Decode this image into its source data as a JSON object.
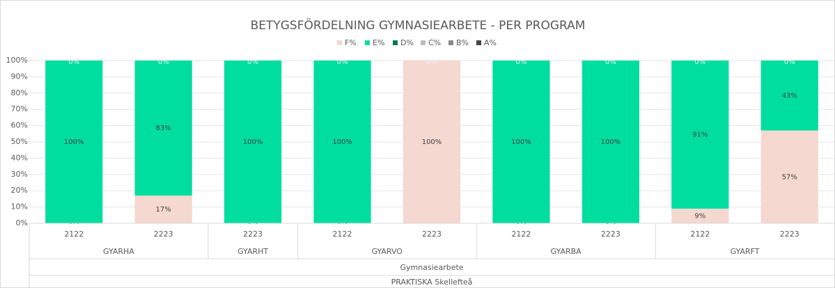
{
  "chart_data": {
    "type": "stacked-bar",
    "title": "BETYGSFÖRDELNING GYMNASIEARBETE - PER PROGRAM",
    "categories": [
      "2122",
      "2223",
      "2223",
      "2122",
      "2223",
      "2122",
      "2223",
      "2122",
      "2223"
    ],
    "groups": [
      {
        "label": "GYARHA",
        "span": 2
      },
      {
        "label": "GYARHT",
        "span": 1
      },
      {
        "label": "GYARVO",
        "span": 2
      },
      {
        "label": "GYARBA",
        "span": 2
      },
      {
        "label": "GYARFT",
        "span": 2
      }
    ],
    "group_level_2": "Gymnasiearbete",
    "group_level_3": "PRAKTISKA Skellefteå",
    "series": [
      {
        "name": "F%",
        "color": "#f5d8cf",
        "values": [
          0,
          17,
          0,
          0,
          100,
          0,
          0,
          9,
          57
        ],
        "value_labels": [
          "0%",
          "17%",
          "0%",
          "0%",
          "100%",
          "0%",
          "0%",
          "9%",
          "57%"
        ]
      },
      {
        "name": "E%",
        "color": "#00de9f",
        "values": [
          100,
          83,
          100,
          100,
          0,
          100,
          100,
          91,
          43
        ],
        "value_labels": [
          "100%",
          "83%",
          "100%",
          "100%",
          "0%",
          "100%",
          "100%",
          "91%",
          "43%"
        ]
      },
      {
        "name": "D%",
        "color": "#007a50",
        "values": [
          0,
          0,
          0,
          0,
          0,
          0,
          0,
          0,
          0
        ],
        "value_labels": [
          "0%",
          "0%",
          "0%",
          "0%",
          "0%",
          "0%",
          "0%",
          "0%",
          "0%"
        ]
      },
      {
        "name": "C%",
        "color": "#bdbdbd",
        "values": [
          0,
          0,
          0,
          0,
          0,
          0,
          0,
          0,
          0
        ]
      },
      {
        "name": "B%",
        "color": "#8a8a8a",
        "values": [
          0,
          0,
          0,
          0,
          0,
          0,
          0,
          0,
          0
        ]
      },
      {
        "name": "A%",
        "color": "#444444",
        "values": [
          0,
          0,
          0,
          0,
          0,
          0,
          0,
          0,
          0
        ]
      }
    ],
    "ylim": [
      0,
      100
    ],
    "yticks": [
      {
        "value": 0,
        "label": "0%"
      },
      {
        "value": 10,
        "label": "10%"
      },
      {
        "value": 20,
        "label": "20%"
      },
      {
        "value": 30,
        "label": "30%"
      },
      {
        "value": 40,
        "label": "40%"
      },
      {
        "value": 50,
        "label": "50%"
      },
      {
        "value": 60,
        "label": "60%"
      },
      {
        "value": 70,
        "label": "70%"
      },
      {
        "value": 80,
        "label": "80%"
      },
      {
        "value": 90,
        "label": "90%"
      },
      {
        "value": 100,
        "label": "100%"
      }
    ],
    "grid": true,
    "legend": "top"
  }
}
